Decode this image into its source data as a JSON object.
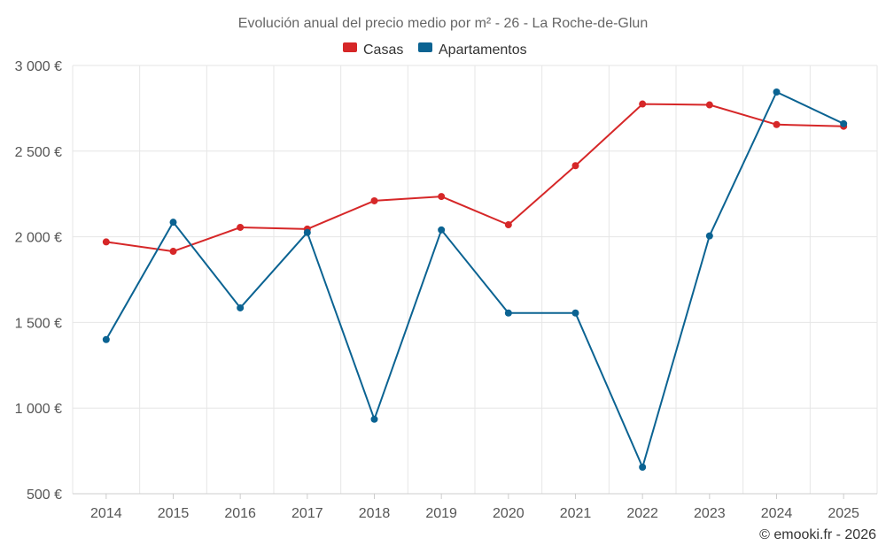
{
  "chart_data": {
    "type": "line",
    "title": "Evolución anual del precio medio por m² - 26 - La Roche-de-Glun",
    "xlabel": "",
    "ylabel": "",
    "categories": [
      "2014",
      "2015",
      "2016",
      "2017",
      "2018",
      "2019",
      "2020",
      "2021",
      "2022",
      "2023",
      "2024",
      "2025"
    ],
    "series": [
      {
        "name": "Casas",
        "color": "#d62728",
        "values": [
          1970,
          1915,
          2055,
          2045,
          2210,
          2235,
          2070,
          2415,
          2775,
          2770,
          2655,
          2645
        ]
      },
      {
        "name": "Apartamentos",
        "color": "#0b6392",
        "values": [
          1400,
          2085,
          1585,
          2025,
          935,
          2040,
          1555,
          1555,
          655,
          2005,
          2845,
          2660
        ]
      }
    ],
    "ylim": [
      500,
      3000
    ],
    "yticks": [
      500,
      1000,
      1500,
      2000,
      2500,
      3000
    ],
    "ytick_labels": [
      "500 €",
      "1 000 €",
      "1 500 €",
      "2 000 €",
      "2 500 €",
      "3 000 €"
    ],
    "grid": true,
    "legend_position": "top-center",
    "copyright": "© emooki.fr - 2026"
  }
}
